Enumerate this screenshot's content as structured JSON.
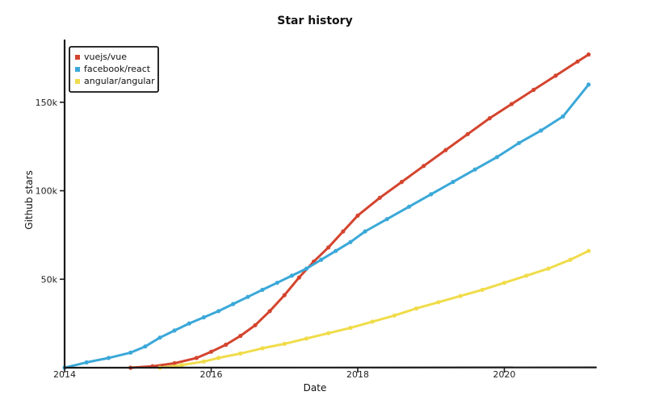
{
  "chart_data": {
    "type": "line",
    "title": "Star history",
    "xlabel": "Date",
    "ylabel": "Github stars",
    "xlim": [
      2014.0,
      2021.25
    ],
    "ylim": [
      0,
      185000
    ],
    "x_ticks": [
      2014,
      2016,
      2018,
      2020
    ],
    "x_tick_labels": [
      "2014",
      "2016",
      "2018",
      "2020"
    ],
    "y_ticks": [
      50000,
      100000,
      150000
    ],
    "y_tick_labels": [
      "50k",
      "100k",
      "150k"
    ],
    "legend_position": "top-left",
    "series": [
      {
        "name": "vuejs/vue",
        "color": "#d4442e",
        "points": [
          [
            2014.9,
            0
          ],
          [
            2015.2,
            800
          ],
          [
            2015.5,
            2500
          ],
          [
            2015.8,
            5500
          ],
          [
            2016.0,
            9000
          ],
          [
            2016.2,
            13000
          ],
          [
            2016.4,
            18000
          ],
          [
            2016.6,
            24000
          ],
          [
            2016.8,
            32000
          ],
          [
            2017.0,
            41000
          ],
          [
            2017.2,
            51000
          ],
          [
            2017.4,
            60000
          ],
          [
            2017.6,
            68000
          ],
          [
            2017.8,
            77000
          ],
          [
            2018.0,
            86000
          ],
          [
            2018.3,
            96000
          ],
          [
            2018.6,
            105000
          ],
          [
            2018.9,
            114000
          ],
          [
            2019.2,
            123000
          ],
          [
            2019.5,
            132000
          ],
          [
            2019.8,
            141000
          ],
          [
            2020.1,
            149000
          ],
          [
            2020.4,
            157000
          ],
          [
            2020.7,
            165000
          ],
          [
            2021.0,
            173000
          ],
          [
            2021.15,
            177000
          ]
        ]
      },
      {
        "name": "facebook/react",
        "color": "#3ba8d8",
        "points": [
          [
            2014.0,
            0
          ],
          [
            2014.3,
            3000
          ],
          [
            2014.6,
            5500
          ],
          [
            2014.9,
            8500
          ],
          [
            2015.1,
            12000
          ],
          [
            2015.3,
            17000
          ],
          [
            2015.5,
            21000
          ],
          [
            2015.7,
            25000
          ],
          [
            2015.9,
            28500
          ],
          [
            2016.1,
            32000
          ],
          [
            2016.3,
            36000
          ],
          [
            2016.5,
            40000
          ],
          [
            2016.7,
            44000
          ],
          [
            2016.9,
            48000
          ],
          [
            2017.1,
            52000
          ],
          [
            2017.3,
            56000
          ],
          [
            2017.5,
            61000
          ],
          [
            2017.7,
            66000
          ],
          [
            2017.9,
            71000
          ],
          [
            2018.1,
            77000
          ],
          [
            2018.4,
            84000
          ],
          [
            2018.7,
            91000
          ],
          [
            2019.0,
            98000
          ],
          [
            2019.3,
            105000
          ],
          [
            2019.6,
            112000
          ],
          [
            2019.9,
            119000
          ],
          [
            2020.2,
            127000
          ],
          [
            2020.5,
            134000
          ],
          [
            2020.8,
            142000
          ],
          [
            2021.15,
            160000
          ]
        ]
      },
      {
        "name": "angular/angular",
        "color": "#f0dc4a",
        "points": [
          [
            2015.3,
            0
          ],
          [
            2015.6,
            1500
          ],
          [
            2015.9,
            3500
          ],
          [
            2016.1,
            5500
          ],
          [
            2016.4,
            8000
          ],
          [
            2016.7,
            11000
          ],
          [
            2017.0,
            13500
          ],
          [
            2017.3,
            16500
          ],
          [
            2017.6,
            19500
          ],
          [
            2017.9,
            22500
          ],
          [
            2018.2,
            26000
          ],
          [
            2018.5,
            29500
          ],
          [
            2018.8,
            33500
          ],
          [
            2019.1,
            37000
          ],
          [
            2019.4,
            40500
          ],
          [
            2019.7,
            44000
          ],
          [
            2020.0,
            48000
          ],
          [
            2020.3,
            52000
          ],
          [
            2020.6,
            56000
          ],
          [
            2020.9,
            61000
          ],
          [
            2021.15,
            66000
          ]
        ]
      }
    ]
  }
}
